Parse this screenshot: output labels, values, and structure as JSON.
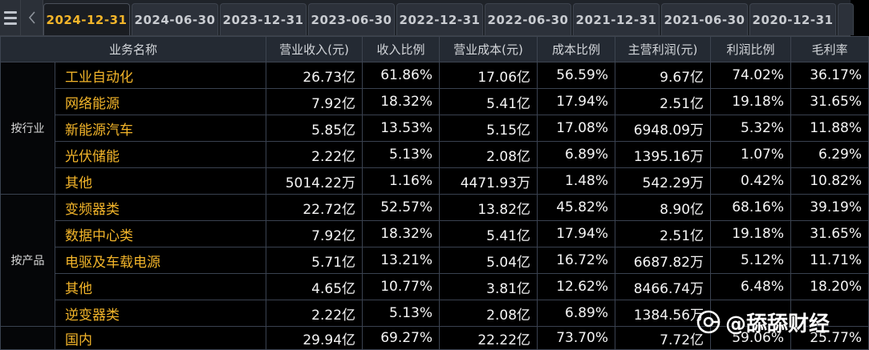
{
  "tabs": [
    "2024-12-31",
    "2024-06-30",
    "2023-12-31",
    "2023-06-30",
    "2022-12-31",
    "2022-06-30",
    "2021-12-31",
    "2021-06-30",
    "2020-12-31"
  ],
  "active_tab": "2024-12-31",
  "icons": {
    "menu": "menu-icon",
    "back": "chevron-left-icon",
    "watermark": "toutiao-logo-icon"
  },
  "colors": {
    "accent": "#f3b52a",
    "background": "#000000",
    "header_bg": "#242a33"
  },
  "table": {
    "headers": [
      "业务名称",
      "营业收入(元)",
      "收入比例",
      "营业成本(元)",
      "成本比例",
      "主营利润(元)",
      "利润比例",
      "毛利率"
    ],
    "groups": [
      {
        "label": "按行业",
        "rows": [
          {
            "name": "工业自动化",
            "revenue": "26.73亿",
            "revenue_ratio": "61.86%",
            "cost": "17.06亿",
            "cost_ratio": "56.59%",
            "profit": "9.67亿",
            "profit_ratio": "74.02%",
            "gross_margin": "36.17%"
          },
          {
            "name": "网络能源",
            "revenue": "7.92亿",
            "revenue_ratio": "18.32%",
            "cost": "5.41亿",
            "cost_ratio": "17.94%",
            "profit": "2.51亿",
            "profit_ratio": "19.18%",
            "gross_margin": "31.65%"
          },
          {
            "name": "新能源汽车",
            "revenue": "5.85亿",
            "revenue_ratio": "13.53%",
            "cost": "5.15亿",
            "cost_ratio": "17.08%",
            "profit": "6948.09万",
            "profit_ratio": "5.32%",
            "gross_margin": "11.88%"
          },
          {
            "name": "光伏储能",
            "revenue": "2.22亿",
            "revenue_ratio": "5.13%",
            "cost": "2.08亿",
            "cost_ratio": "6.89%",
            "profit": "1395.16万",
            "profit_ratio": "1.07%",
            "gross_margin": "6.29%"
          },
          {
            "name": "其他",
            "revenue": "5014.22万",
            "revenue_ratio": "1.16%",
            "cost": "4471.93万",
            "cost_ratio": "1.48%",
            "profit": "542.29万",
            "profit_ratio": "0.42%",
            "gross_margin": "10.82%"
          }
        ]
      },
      {
        "label": "按产品",
        "rows": [
          {
            "name": "变频器类",
            "revenue": "22.72亿",
            "revenue_ratio": "52.57%",
            "cost": "13.82亿",
            "cost_ratio": "45.82%",
            "profit": "8.90亿",
            "profit_ratio": "68.16%",
            "gross_margin": "39.19%"
          },
          {
            "name": "数据中心类",
            "revenue": "7.92亿",
            "revenue_ratio": "18.32%",
            "cost": "5.41亿",
            "cost_ratio": "17.94%",
            "profit": "2.51亿",
            "profit_ratio": "19.18%",
            "gross_margin": "31.65%"
          },
          {
            "name": "电驱及车载电源",
            "revenue": "5.71亿",
            "revenue_ratio": "13.21%",
            "cost": "5.04亿",
            "cost_ratio": "16.72%",
            "profit": "6687.82万",
            "profit_ratio": "5.12%",
            "gross_margin": "11.71%"
          },
          {
            "name": "其他",
            "revenue": "4.65亿",
            "revenue_ratio": "10.77%",
            "cost": "3.81亿",
            "cost_ratio": "12.62%",
            "profit": "8466.74万",
            "profit_ratio": "6.48%",
            "gross_margin": "18.20%"
          },
          {
            "name": "逆变器类",
            "revenue": "2.22亿",
            "revenue_ratio": "5.13%",
            "cost": "2.08亿",
            "cost_ratio": "6.89%",
            "profit": "1384.56万",
            "profit_ratio": "",
            "gross_margin": ""
          }
        ]
      },
      {
        "label": "",
        "rows": [
          {
            "name": "国内",
            "revenue": "29.94亿",
            "revenue_ratio": "69.27%",
            "cost": "22.22亿",
            "cost_ratio": "73.70%",
            "profit": "7.72亿",
            "profit_ratio": "59.06%",
            "gross_margin": "25.77%"
          }
        ]
      }
    ]
  },
  "watermark": {
    "text": "@舔舔财经"
  }
}
